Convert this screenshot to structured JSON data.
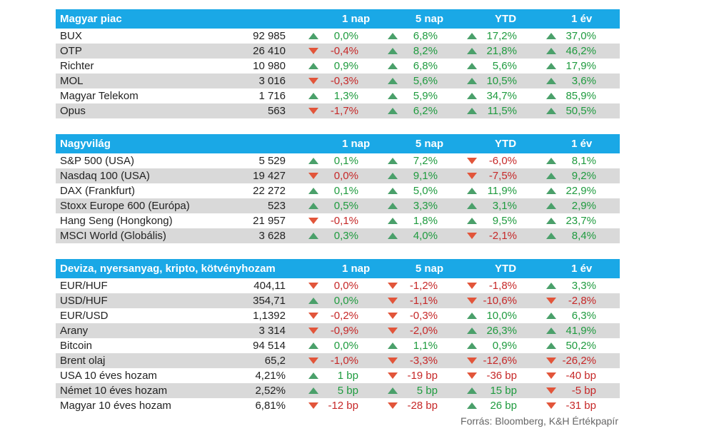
{
  "sections": [
    {
      "title": "Magyar piac",
      "columns": [
        "1 nap",
        "5 nap",
        "YTD",
        "1 év"
      ],
      "rows": [
        {
          "name": "BUX",
          "value": "92 985",
          "changes": [
            {
              "t": "0,0%",
              "d": "up",
              "c": "pos"
            },
            {
              "t": "6,8%",
              "d": "up",
              "c": "pos"
            },
            {
              "t": "17,2%",
              "d": "up",
              "c": "pos"
            },
            {
              "t": "37,0%",
              "d": "up",
              "c": "pos"
            }
          ]
        },
        {
          "name": "OTP",
          "value": "26 410",
          "changes": [
            {
              "t": "-0,4%",
              "d": "down",
              "c": "neg"
            },
            {
              "t": "8,2%",
              "d": "up",
              "c": "pos"
            },
            {
              "t": "21,8%",
              "d": "up",
              "c": "pos"
            },
            {
              "t": "46,2%",
              "d": "up",
              "c": "pos"
            }
          ]
        },
        {
          "name": "Richter",
          "value": "10 980",
          "changes": [
            {
              "t": "0,9%",
              "d": "up",
              "c": "pos"
            },
            {
              "t": "6,8%",
              "d": "up",
              "c": "pos"
            },
            {
              "t": "5,6%",
              "d": "up",
              "c": "pos"
            },
            {
              "t": "17,9%",
              "d": "up",
              "c": "pos"
            }
          ]
        },
        {
          "name": "MOL",
          "value": "3 016",
          "changes": [
            {
              "t": "-0,3%",
              "d": "down",
              "c": "neg"
            },
            {
              "t": "5,6%",
              "d": "up",
              "c": "pos"
            },
            {
              "t": "10,5%",
              "d": "up",
              "c": "pos"
            },
            {
              "t": "3,6%",
              "d": "up",
              "c": "pos"
            }
          ]
        },
        {
          "name": "Magyar Telekom",
          "value": "1 716",
          "changes": [
            {
              "t": "1,3%",
              "d": "up",
              "c": "pos"
            },
            {
              "t": "5,9%",
              "d": "up",
              "c": "pos"
            },
            {
              "t": "34,7%",
              "d": "up",
              "c": "pos"
            },
            {
              "t": "85,9%",
              "d": "up",
              "c": "pos"
            }
          ]
        },
        {
          "name": "Opus",
          "value": "563",
          "changes": [
            {
              "t": "-1,7%",
              "d": "down",
              "c": "neg"
            },
            {
              "t": "6,2%",
              "d": "up",
              "c": "pos"
            },
            {
              "t": "11,5%",
              "d": "up",
              "c": "pos"
            },
            {
              "t": "50,5%",
              "d": "up",
              "c": "pos"
            }
          ]
        }
      ]
    },
    {
      "title": "Nagyvilág",
      "columns": [
        "1 nap",
        "5 nap",
        "YTD",
        "1 év"
      ],
      "rows": [
        {
          "name": "S&P 500 (USA)",
          "value": "5 529",
          "changes": [
            {
              "t": "0,1%",
              "d": "up",
              "c": "pos"
            },
            {
              "t": "7,2%",
              "d": "up",
              "c": "pos"
            },
            {
              "t": "-6,0%",
              "d": "down",
              "c": "neg"
            },
            {
              "t": "8,1%",
              "d": "up",
              "c": "pos"
            }
          ]
        },
        {
          "name": "Nasdaq 100 (USA)",
          "value": "19 427",
          "changes": [
            {
              "t": "0,0%",
              "d": "down",
              "c": "neg"
            },
            {
              "t": "9,1%",
              "d": "up",
              "c": "pos"
            },
            {
              "t": "-7,5%",
              "d": "down",
              "c": "neg"
            },
            {
              "t": "9,2%",
              "d": "up",
              "c": "pos"
            }
          ]
        },
        {
          "name": "DAX (Frankfurt)",
          "value": "22 272",
          "changes": [
            {
              "t": "0,1%",
              "d": "up",
              "c": "pos"
            },
            {
              "t": "5,0%",
              "d": "up",
              "c": "pos"
            },
            {
              "t": "11,9%",
              "d": "up",
              "c": "pos"
            },
            {
              "t": "22,9%",
              "d": "up",
              "c": "pos"
            }
          ]
        },
        {
          "name": "Stoxx Europe 600 (Európa)",
          "value": "523",
          "changes": [
            {
              "t": "0,5%",
              "d": "up",
              "c": "pos"
            },
            {
              "t": "3,3%",
              "d": "up",
              "c": "pos"
            },
            {
              "t": "3,1%",
              "d": "up",
              "c": "pos"
            },
            {
              "t": "2,9%",
              "d": "up",
              "c": "pos"
            }
          ]
        },
        {
          "name": "Hang Seng (Hongkong)",
          "value": "21 957",
          "changes": [
            {
              "t": "-0,1%",
              "d": "down",
              "c": "neg"
            },
            {
              "t": "1,8%",
              "d": "up",
              "c": "pos"
            },
            {
              "t": "9,5%",
              "d": "up",
              "c": "pos"
            },
            {
              "t": "23,7%",
              "d": "up",
              "c": "pos"
            }
          ]
        },
        {
          "name": "MSCI World (Globális)",
          "value": "3 628",
          "changes": [
            {
              "t": "0,3%",
              "d": "up",
              "c": "pos"
            },
            {
              "t": "4,0%",
              "d": "up",
              "c": "pos"
            },
            {
              "t": "-2,1%",
              "d": "down",
              "c": "neg"
            },
            {
              "t": "8,4%",
              "d": "up",
              "c": "pos"
            }
          ]
        }
      ]
    },
    {
      "title": "Deviza, nyersanyag, kripto, kötvényhozam",
      "columns": [
        "1 nap",
        "5 nap",
        "YTD",
        "1 év"
      ],
      "rows": [
        {
          "name": "EUR/HUF",
          "value": "404,11",
          "changes": [
            {
              "t": "0,0%",
              "d": "down",
              "c": "neg"
            },
            {
              "t": "-1,2%",
              "d": "down",
              "c": "neg"
            },
            {
              "t": "-1,8%",
              "d": "down",
              "c": "neg"
            },
            {
              "t": "3,3%",
              "d": "up",
              "c": "pos"
            }
          ]
        },
        {
          "name": "USD/HUF",
          "value": "354,71",
          "changes": [
            {
              "t": "0,0%",
              "d": "up",
              "c": "pos"
            },
            {
              "t": "-1,1%",
              "d": "down",
              "c": "neg"
            },
            {
              "t": "-10,6%",
              "d": "down",
              "c": "neg"
            },
            {
              "t": "-2,8%",
              "d": "down",
              "c": "neg"
            }
          ]
        },
        {
          "name": "EUR/USD",
          "value": "1,1392",
          "changes": [
            {
              "t": "-0,2%",
              "d": "down",
              "c": "neg"
            },
            {
              "t": "-0,3%",
              "d": "down",
              "c": "neg"
            },
            {
              "t": "10,0%",
              "d": "up",
              "c": "pos"
            },
            {
              "t": "6,3%",
              "d": "up",
              "c": "pos"
            }
          ]
        },
        {
          "name": "Arany",
          "value": "3 314",
          "changes": [
            {
              "t": "-0,9%",
              "d": "down",
              "c": "neg"
            },
            {
              "t": "-2,0%",
              "d": "down",
              "c": "neg"
            },
            {
              "t": "26,3%",
              "d": "up",
              "c": "pos"
            },
            {
              "t": "41,9%",
              "d": "up",
              "c": "pos"
            }
          ]
        },
        {
          "name": "Bitcoin",
          "value": "94 514",
          "changes": [
            {
              "t": "0,0%",
              "d": "up",
              "c": "pos"
            },
            {
              "t": "1,1%",
              "d": "up",
              "c": "pos"
            },
            {
              "t": "0,9%",
              "d": "up",
              "c": "pos"
            },
            {
              "t": "50,2%",
              "d": "up",
              "c": "pos"
            }
          ]
        },
        {
          "name": "Brent olaj",
          "value": "65,2",
          "changes": [
            {
              "t": "-1,0%",
              "d": "down",
              "c": "neg"
            },
            {
              "t": "-3,3%",
              "d": "down",
              "c": "neg"
            },
            {
              "t": "-12,6%",
              "d": "down",
              "c": "neg"
            },
            {
              "t": "-26,2%",
              "d": "down",
              "c": "neg"
            }
          ]
        },
        {
          "name": "USA 10 éves hozam",
          "value": "4,21%",
          "changes": [
            {
              "t": "1 bp",
              "d": "up",
              "c": "pos"
            },
            {
              "t": "-19 bp",
              "d": "down",
              "c": "neg"
            },
            {
              "t": "-36 bp",
              "d": "down",
              "c": "neg"
            },
            {
              "t": "-40 bp",
              "d": "down",
              "c": "neg"
            }
          ]
        },
        {
          "name": "Német 10 éves hozam",
          "value": "2,52%",
          "changes": [
            {
              "t": "5 bp",
              "d": "up",
              "c": "pos"
            },
            {
              "t": "5 bp",
              "d": "up",
              "c": "pos"
            },
            {
              "t": "15 bp",
              "d": "up",
              "c": "pos"
            },
            {
              "t": "-5 bp",
              "d": "down",
              "c": "neg"
            }
          ]
        },
        {
          "name": "Magyar 10 éves hozam",
          "value": "6,81%",
          "changes": [
            {
              "t": "-12 bp",
              "d": "down",
              "c": "neg"
            },
            {
              "t": "-28 bp",
              "d": "down",
              "c": "neg"
            },
            {
              "t": "26 bp",
              "d": "up",
              "c": "pos"
            },
            {
              "t": "-31 bp",
              "d": "down",
              "c": "neg"
            }
          ]
        }
      ]
    }
  ],
  "source": "Forrás: Bloomberg, K&H Értékpapír",
  "colors": {
    "header": "#1aa8e6",
    "alt_row": "#d9d9d9",
    "positive": "#1f9b3f",
    "negative": "#c62828",
    "arrow_up": "#4aa06a",
    "arrow_down": "#e2553a"
  }
}
